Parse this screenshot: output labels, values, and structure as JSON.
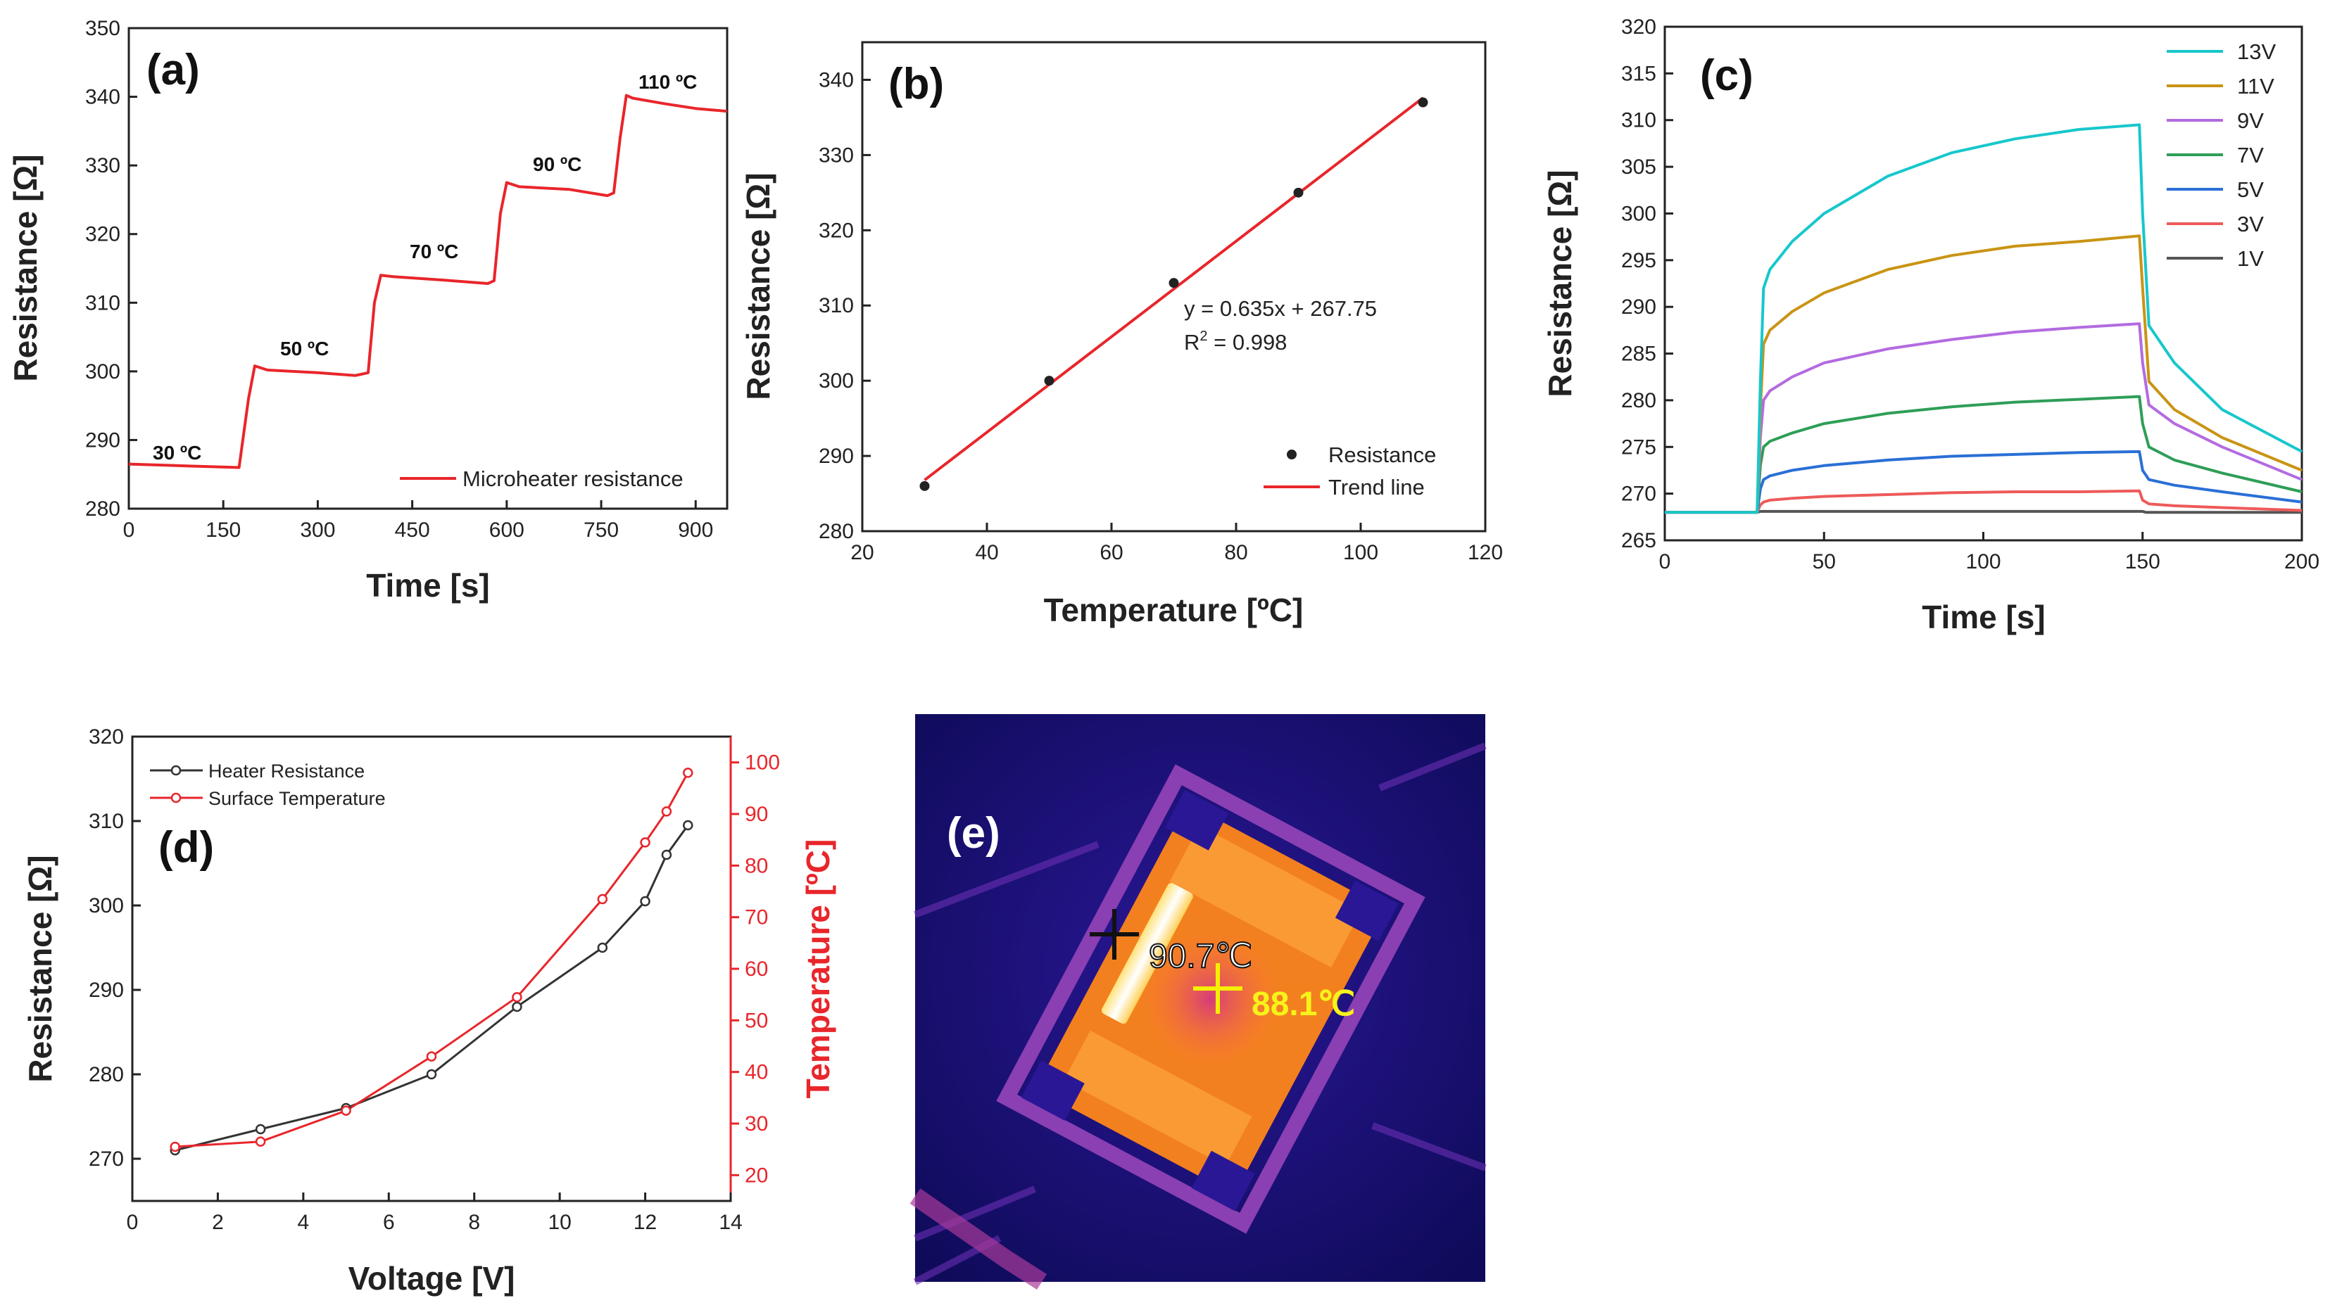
{
  "chart_data": [
    {
      "panel": "(a)",
      "type": "line",
      "xlabel": "Time [s]",
      "ylabel": "Resistance [Ω]",
      "xlim": [
        0,
        950
      ],
      "ylim": [
        280,
        350
      ],
      "xticks": [
        "0",
        "150",
        "300",
        "450",
        "600",
        "750",
        "900"
      ],
      "yticks": [
        "280",
        "290",
        "300",
        "310",
        "320",
        "330",
        "340",
        "350"
      ],
      "series": [
        {
          "name": "Microheater resistance",
          "color": "#e8262b",
          "x": [
            0,
            100,
            175,
            190,
            200,
            220,
            300,
            360,
            380,
            390,
            400,
            420,
            500,
            570,
            580,
            590,
            600,
            620,
            700,
            760,
            770,
            780,
            790,
            800,
            850,
            900,
            950
          ],
          "y": [
            286.5,
            286.2,
            286.0,
            296.0,
            300.8,
            300.2,
            299.8,
            299.4,
            299.8,
            310.0,
            314.0,
            313.8,
            313.3,
            312.8,
            313.2,
            323.0,
            327.5,
            326.9,
            326.5,
            325.6,
            326.0,
            334.0,
            340.2,
            339.8,
            339.0,
            338.3,
            337.9
          ]
        }
      ],
      "annotations": [
        "30 ºC",
        "50 ºC",
        "70 ºC",
        "90 ºC",
        "110 ºC"
      ],
      "legend_position": "bottom-right"
    },
    {
      "panel": "(b)",
      "type": "scatter",
      "xlabel": "Temperature [ºC]",
      "ylabel": "Resistance [Ω]",
      "xlim": [
        20,
        120
      ],
      "ylim": [
        280,
        345
      ],
      "xticks": [
        "20",
        "40",
        "60",
        "80",
        "100",
        "120"
      ],
      "yticks": [
        "280",
        "290",
        "300",
        "310",
        "320",
        "330",
        "340"
      ],
      "series": [
        {
          "name": "Resistance",
          "color": "#222222",
          "x": [
            30,
            50,
            70,
            90,
            110
          ],
          "y": [
            286,
            300,
            313,
            325,
            337
          ]
        },
        {
          "name": "Trend line",
          "color": "#e8262b",
          "x": [
            30,
            110
          ],
          "y": [
            286.8,
            337.6
          ]
        }
      ],
      "equation": "y = 0.635x + 267.75",
      "r2_prefix": "R",
      "r2_sup": "2",
      "r2_value": " = 0.998",
      "legend_position": "bottom-right"
    },
    {
      "panel": "(c)",
      "type": "line",
      "xlabel": "Time [s]",
      "ylabel": "Resistance [Ω]",
      "xlim": [
        0,
        200
      ],
      "ylim": [
        265,
        320
      ],
      "xticks": [
        "0",
        "50",
        "100",
        "150",
        "200"
      ],
      "yticks": [
        "265",
        "270",
        "275",
        "280",
        "285",
        "290",
        "295",
        "300",
        "305",
        "310",
        "315",
        "320"
      ],
      "series": [
        {
          "name": "13V",
          "color": "#17c7cc",
          "x": [
            0,
            29,
            30,
            31,
            33,
            40,
            50,
            70,
            90,
            110,
            130,
            149,
            150,
            152,
            160,
            175,
            200
          ],
          "y": [
            268,
            268,
            282,
            292,
            294,
            297,
            300,
            304,
            306.5,
            308,
            309,
            309.5,
            300,
            288,
            284,
            279,
            274.5
          ]
        },
        {
          "name": "11V",
          "color": "#c99414",
          "x": [
            0,
            29,
            30,
            31,
            33,
            40,
            50,
            70,
            90,
            110,
            130,
            149,
            150,
            152,
            160,
            175,
            200
          ],
          "y": [
            268,
            268,
            279,
            286,
            287.5,
            289.5,
            291.5,
            294,
            295.5,
            296.5,
            297,
            297.6,
            292,
            282,
            279,
            276,
            272.5
          ]
        },
        {
          "name": "9V",
          "color": "#b36be0",
          "x": [
            0,
            29,
            30,
            31,
            33,
            40,
            50,
            70,
            90,
            110,
            130,
            149,
            150,
            152,
            160,
            175,
            200
          ],
          "y": [
            268,
            268,
            276,
            280,
            281,
            282.5,
            284,
            285.5,
            286.5,
            287.3,
            287.8,
            288.2,
            284,
            279.5,
            277.5,
            275,
            271.5
          ]
        },
        {
          "name": "7V",
          "color": "#2e9e57",
          "x": [
            0,
            29,
            30,
            31,
            33,
            40,
            50,
            70,
            90,
            110,
            130,
            149,
            150,
            152,
            160,
            175,
            200
          ],
          "y": [
            268,
            268,
            273,
            275,
            275.6,
            276.5,
            277.5,
            278.6,
            279.3,
            279.8,
            280.1,
            280.4,
            277.5,
            275,
            273.6,
            272.2,
            270.2
          ]
        },
        {
          "name": "5V",
          "color": "#2a6fd6",
          "x": [
            0,
            29,
            30,
            31,
            33,
            40,
            50,
            70,
            90,
            110,
            130,
            149,
            150,
            152,
            160,
            175,
            200
          ],
          "y": [
            268,
            268,
            270.5,
            271.5,
            271.9,
            272.5,
            273,
            273.6,
            274,
            274.2,
            274.4,
            274.5,
            272.5,
            271.5,
            270.9,
            270.2,
            269.1
          ]
        },
        {
          "name": "3V",
          "color": "#ee5a5a",
          "x": [
            0,
            29,
            30,
            31,
            33,
            40,
            50,
            70,
            90,
            110,
            130,
            149,
            150,
            152,
            160,
            175,
            200
          ],
          "y": [
            268,
            268,
            268.8,
            269.1,
            269.3,
            269.5,
            269.7,
            269.9,
            270.1,
            270.2,
            270.2,
            270.3,
            269.3,
            268.9,
            268.7,
            268.5,
            268.2
          ]
        },
        {
          "name": "1V",
          "color": "#555555",
          "x": [
            0,
            29,
            30,
            100,
            150,
            151,
            200
          ],
          "y": [
            268,
            268,
            268.1,
            268.1,
            268.1,
            268.0,
            268.0
          ]
        }
      ],
      "legend_position": "top-right"
    },
    {
      "panel": "(d)",
      "type": "line",
      "xlabel": "Voltage [V]",
      "ylabel": "Resistance [Ω]",
      "y2label": "Temperature [ºC]",
      "xlim": [
        0,
        14
      ],
      "ylim": [
        265,
        320
      ],
      "y2lim": [
        15,
        105
      ],
      "xticks": [
        "0",
        "2",
        "4",
        "6",
        "8",
        "10",
        "12",
        "14"
      ],
      "yticks": [
        "270",
        "280",
        "290",
        "300",
        "310",
        "320"
      ],
      "y2ticks": [
        "20",
        "30",
        "40",
        "50",
        "60",
        "70",
        "80",
        "90",
        "100"
      ],
      "series": [
        {
          "name": "Heater Resistance",
          "color": "#333333",
          "axis": "left",
          "x": [
            1,
            3,
            5,
            7,
            9,
            11,
            12,
            12.5,
            13
          ],
          "y": [
            271,
            273.5,
            276,
            280,
            288,
            295,
            300.5,
            306,
            309.5
          ]
        },
        {
          "name": "Surface Temperature",
          "color": "#e8262b",
          "axis": "right",
          "x": [
            1,
            3,
            5,
            7,
            9,
            11,
            12,
            12.5,
            13
          ],
          "y": [
            25.5,
            26.5,
            32.5,
            43,
            54.5,
            73.5,
            84.5,
            90.5,
            98
          ]
        }
      ],
      "legend_position": "top-left"
    },
    {
      "panel": "(e)",
      "type": "image",
      "readings": [
        "90.7℃",
        "88.1℃"
      ]
    }
  ]
}
